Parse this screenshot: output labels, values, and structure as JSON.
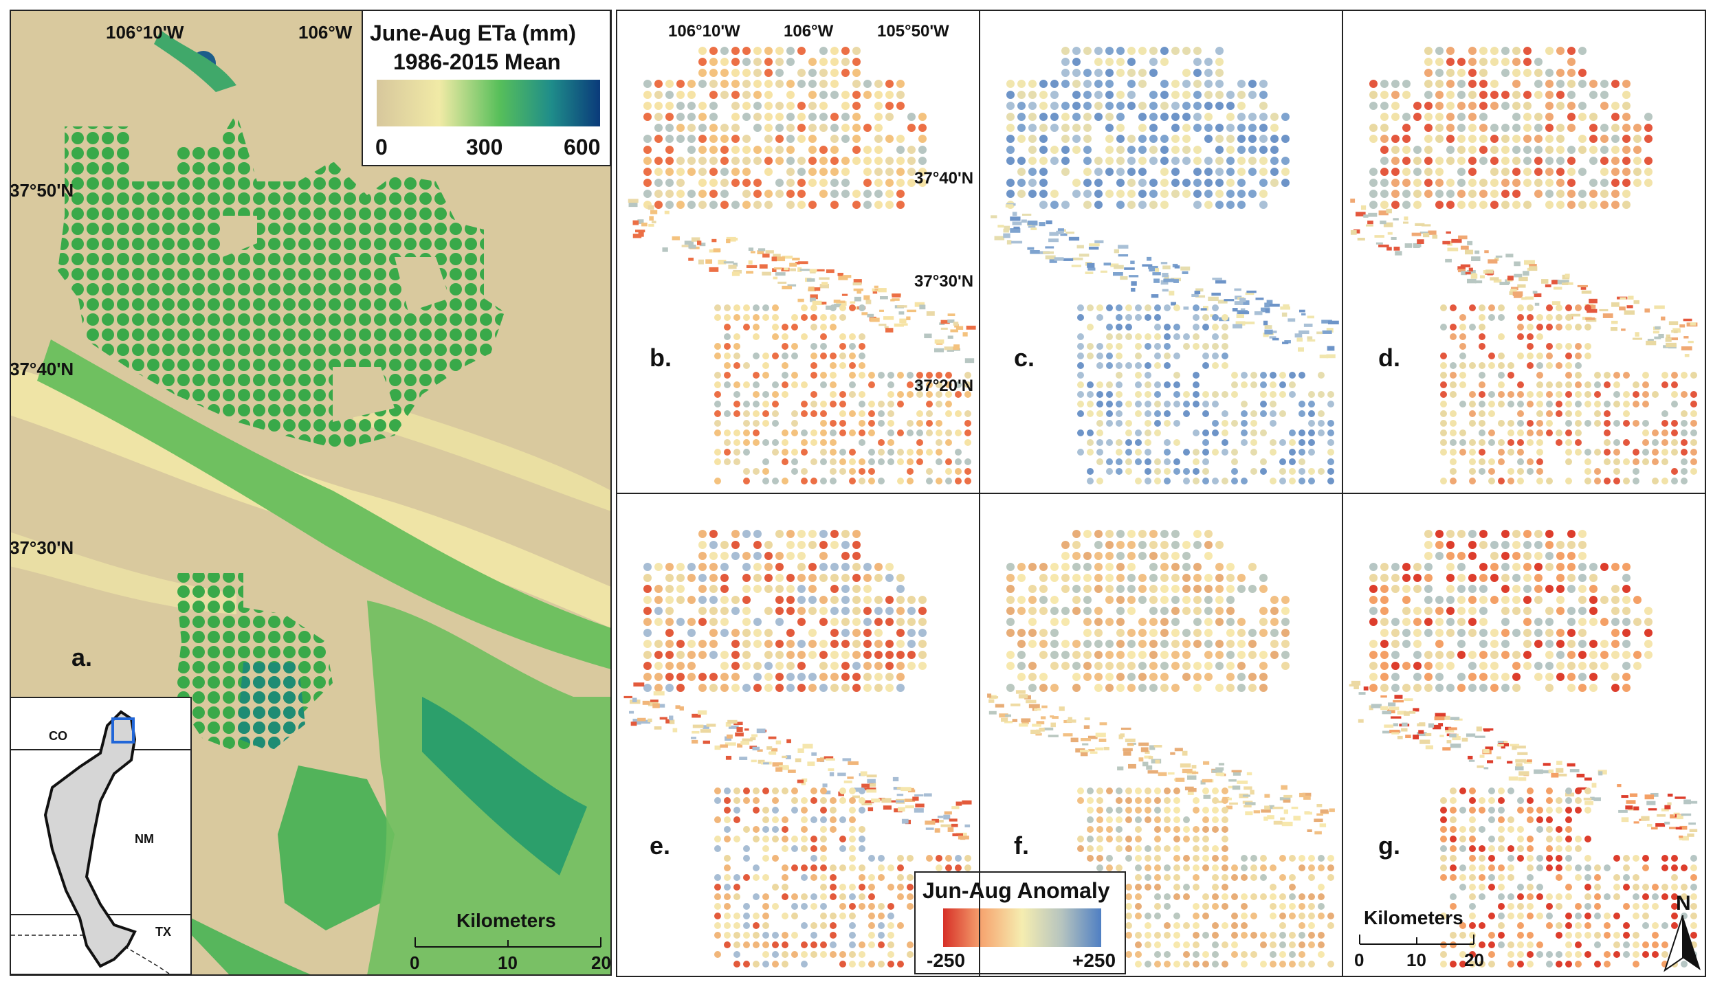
{
  "panel_a": {
    "letter": "a.",
    "lon_labels": [
      "106°10'W",
      "106°W"
    ],
    "lat_labels": [
      "37°50'N",
      "37°40'N",
      "37°30'N"
    ],
    "legend": {
      "title_line1": "June-Aug ETa (mm)",
      "title_line2": "1986-2015 Mean",
      "ticks": [
        "0",
        "300",
        "600"
      ],
      "colors": [
        "#d7c79c",
        "#f1eaa6",
        "#57bf5a",
        "#1f8d8a",
        "#0a3a7a"
      ]
    },
    "inset": {
      "states": [
        "CO",
        "NM",
        "TX"
      ]
    },
    "scale": {
      "title": "Kilometers",
      "ticks": [
        "0",
        "10",
        "20"
      ]
    }
  },
  "panels_bcd_lon_labels": [
    "106°10'W",
    "106°W",
    "105°50'W"
  ],
  "panels_bcd_lat_labels": [
    "37°40'N",
    "37°30'N",
    "37°20'N"
  ],
  "anomaly_panels": [
    {
      "letter": "b."
    },
    {
      "letter": "c."
    },
    {
      "letter": "d."
    },
    {
      "letter": "e."
    },
    {
      "letter": "f."
    },
    {
      "letter": "g."
    }
  ],
  "anomaly_legend": {
    "title": "Jun-Aug Anomaly",
    "ticks": [
      "-250",
      "+250"
    ],
    "colors": [
      "#d73027",
      "#f6a772",
      "#f5edb0",
      "#b6c4bf",
      "#4f7fc3"
    ]
  },
  "scale_g": {
    "title": "Kilometers",
    "ticks": [
      "0",
      "10",
      "20"
    ]
  },
  "north_arrow": {
    "label": "N"
  }
}
